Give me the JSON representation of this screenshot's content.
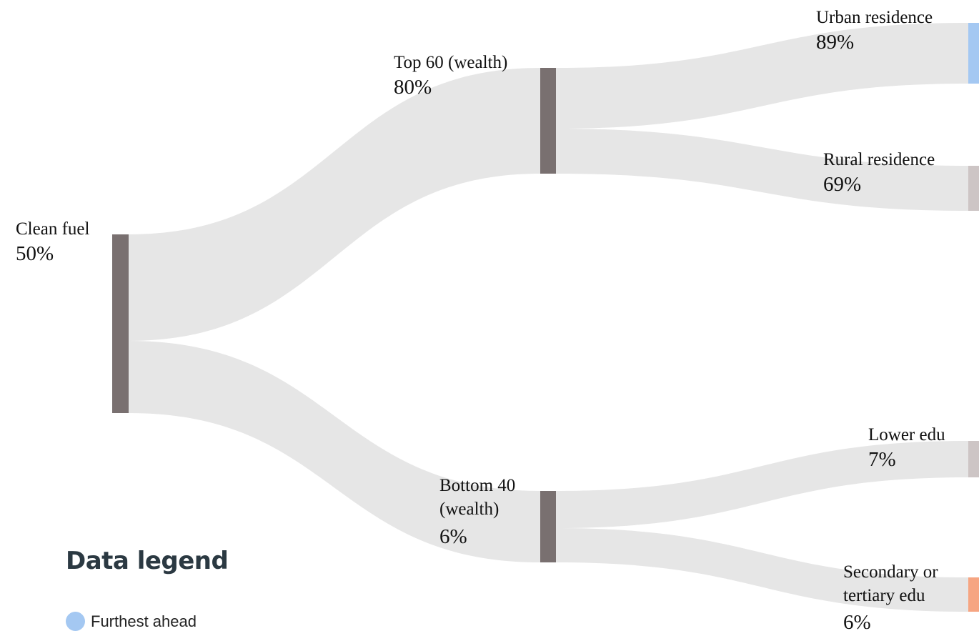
{
  "chart_data": {
    "type": "sankey",
    "nodes": [
      {
        "id": "clean",
        "label": "Clean fuel",
        "value": "50%",
        "color": "#797070"
      },
      {
        "id": "top60",
        "label": "Top 60 (wealth)",
        "value": "80%",
        "color": "#797070"
      },
      {
        "id": "bottom40",
        "label": "Bottom 40 (wealth)",
        "label_lines": [
          "Bottom 40",
          "(wealth)"
        ],
        "value": "6%",
        "color": "#797070"
      },
      {
        "id": "urban",
        "label": "Urban residence",
        "value": "89%",
        "color": "#a4c8f2"
      },
      {
        "id": "rural",
        "label": "Rural residence",
        "value": "69%",
        "color": "#cdc5c5"
      },
      {
        "id": "loweredu",
        "label": "Lower edu",
        "value": "7%",
        "color": "#cdc5c5"
      },
      {
        "id": "secedu",
        "label": "Secondary or tertiary edu",
        "label_lines": [
          "Secondary or",
          "tertiary edu"
        ],
        "value": "6%",
        "color": "#f6a582"
      }
    ],
    "links": [
      {
        "source": "clean",
        "target": "top60"
      },
      {
        "source": "clean",
        "target": "bottom40"
      },
      {
        "source": "top60",
        "target": "urban"
      },
      {
        "source": "top60",
        "target": "rural"
      },
      {
        "source": "bottom40",
        "target": "loweredu"
      },
      {
        "source": "bottom40",
        "target": "secedu"
      }
    ],
    "link_color": "#e6e6e6"
  },
  "legend": {
    "title": "Data legend",
    "items": [
      {
        "label": "Furthest ahead",
        "color": "#a4c8f2"
      }
    ]
  }
}
